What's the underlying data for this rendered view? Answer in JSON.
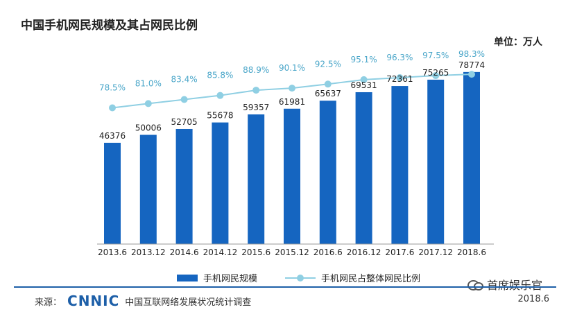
{
  "header": {
    "title": "中国手机网民规模及其占网民比例",
    "unit": "单位：万人"
  },
  "chart_data": {
    "type": "bar",
    "categories": [
      "2013.6",
      "2013.12",
      "2014.6",
      "2014.12",
      "2015.6",
      "2015.12",
      "2016.6",
      "2016.12",
      "2017.6",
      "2017.12",
      "2018.6"
    ],
    "series": [
      {
        "name": "手机网民规模",
        "type": "bar",
        "values": [
          46376,
          50006,
          52705,
          55678,
          59357,
          61981,
          65637,
          69531,
          72361,
          75265,
          78774
        ],
        "color": "#1565c0"
      },
      {
        "name": "手机网民占整体网民比例",
        "type": "line",
        "values": [
          78.5,
          81.0,
          83.4,
          85.8,
          88.9,
          90.1,
          92.5,
          95.1,
          96.3,
          97.5,
          98.3
        ],
        "labels": [
          "78.5%",
          "81.0%",
          "83.4%",
          "85.8%",
          "88.9%",
          "90.1%",
          "92.5%",
          "95.1%",
          "96.3%",
          "97.5%",
          "98.3%"
        ],
        "color": "#8fcfe3"
      }
    ]
  },
  "legend": {
    "bar_label": "手机网民规模",
    "line_label": "手机网民占整体网民比例"
  },
  "footer": {
    "source_prefix": "来源：",
    "logo_text": "CNNIC",
    "org_name": "中国互联网络发展状况统计调查",
    "date": "2018.6"
  },
  "watermark": {
    "text": "首席娱乐官",
    "icon": "wechat-icon"
  }
}
